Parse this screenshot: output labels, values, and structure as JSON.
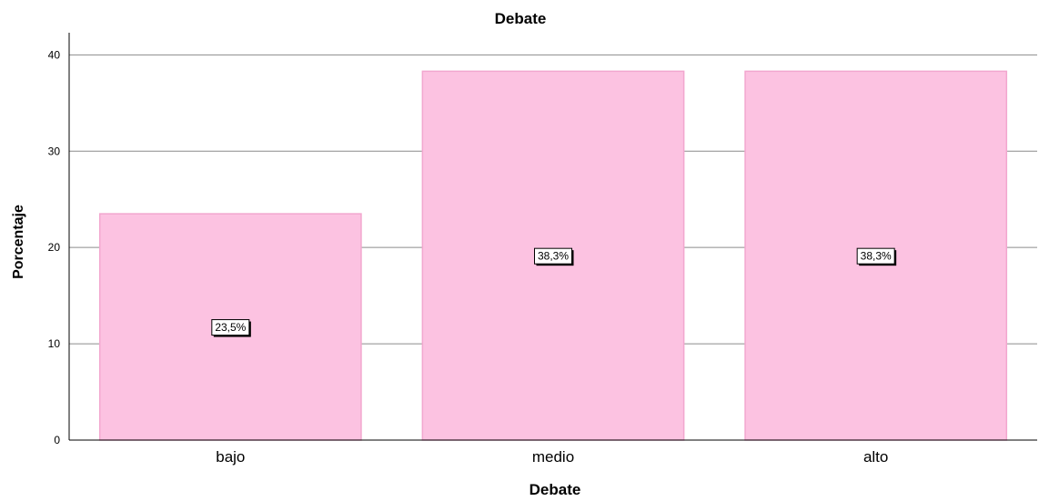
{
  "chart_data": {
    "type": "bar",
    "title": "Debate",
    "xlabel": "Debate",
    "ylabel": "Porcentaje",
    "categories": [
      "bajo",
      "medio",
      "alto"
    ],
    "values": [
      23.5,
      38.3,
      38.3
    ],
    "data_labels": [
      "23,5%",
      "38,3%",
      "38,3%"
    ],
    "yticks": [
      0,
      10,
      20,
      30,
      40
    ],
    "ylim": [
      0,
      42.3
    ],
    "grid": true,
    "colors": {
      "bar_fill": "#fcc2e1",
      "bar_stroke": "#f2a7cf",
      "grid": "#8c8c8c",
      "axis": "#000000"
    }
  }
}
